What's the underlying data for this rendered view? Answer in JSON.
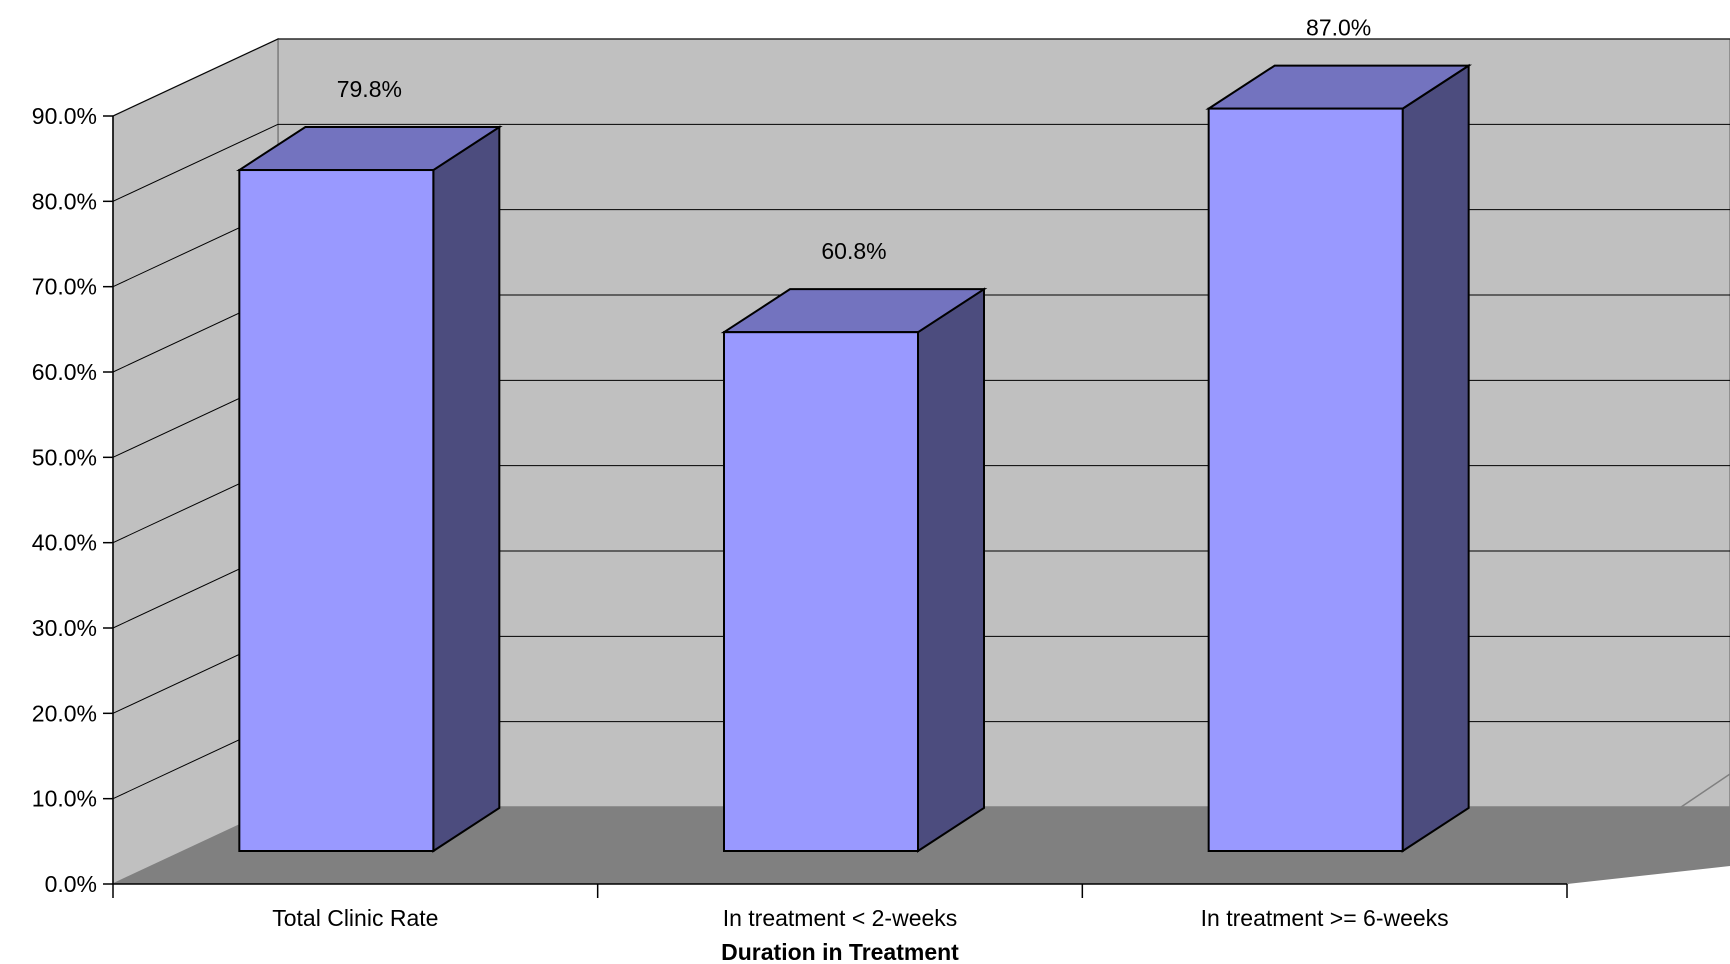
{
  "chart_data": {
    "type": "bar",
    "style": "3d-column",
    "title": "",
    "xlabel": "Duration in Treatment",
    "ylabel": "",
    "categories": [
      "Total Clinic Rate",
      "In treatment < 2-weeks",
      "In treatment >= 6-weeks"
    ],
    "values": [
      79.8,
      60.8,
      87.0
    ],
    "data_labels": [
      "79.8%",
      "60.8%",
      "87.0%"
    ],
    "ylim": [
      0,
      90
    ],
    "y_ticks": [
      0,
      10,
      20,
      30,
      40,
      50,
      60,
      70,
      80,
      90
    ],
    "y_tick_labels": [
      "0.0%",
      "10.0%",
      "20.0%",
      "30.0%",
      "40.0%",
      "50.0%",
      "60.0%",
      "70.0%",
      "80.0%",
      "90.0%"
    ],
    "grid": true,
    "legend": "none",
    "colors": {
      "bar_front": "#9999ff",
      "bar_top": "#7373bf",
      "bar_side": "#4c4c7e",
      "back_wall": "#c0c0c0",
      "side_wall": "#c0c0c0",
      "floor": "#808080",
      "grid": "#000000"
    }
  }
}
